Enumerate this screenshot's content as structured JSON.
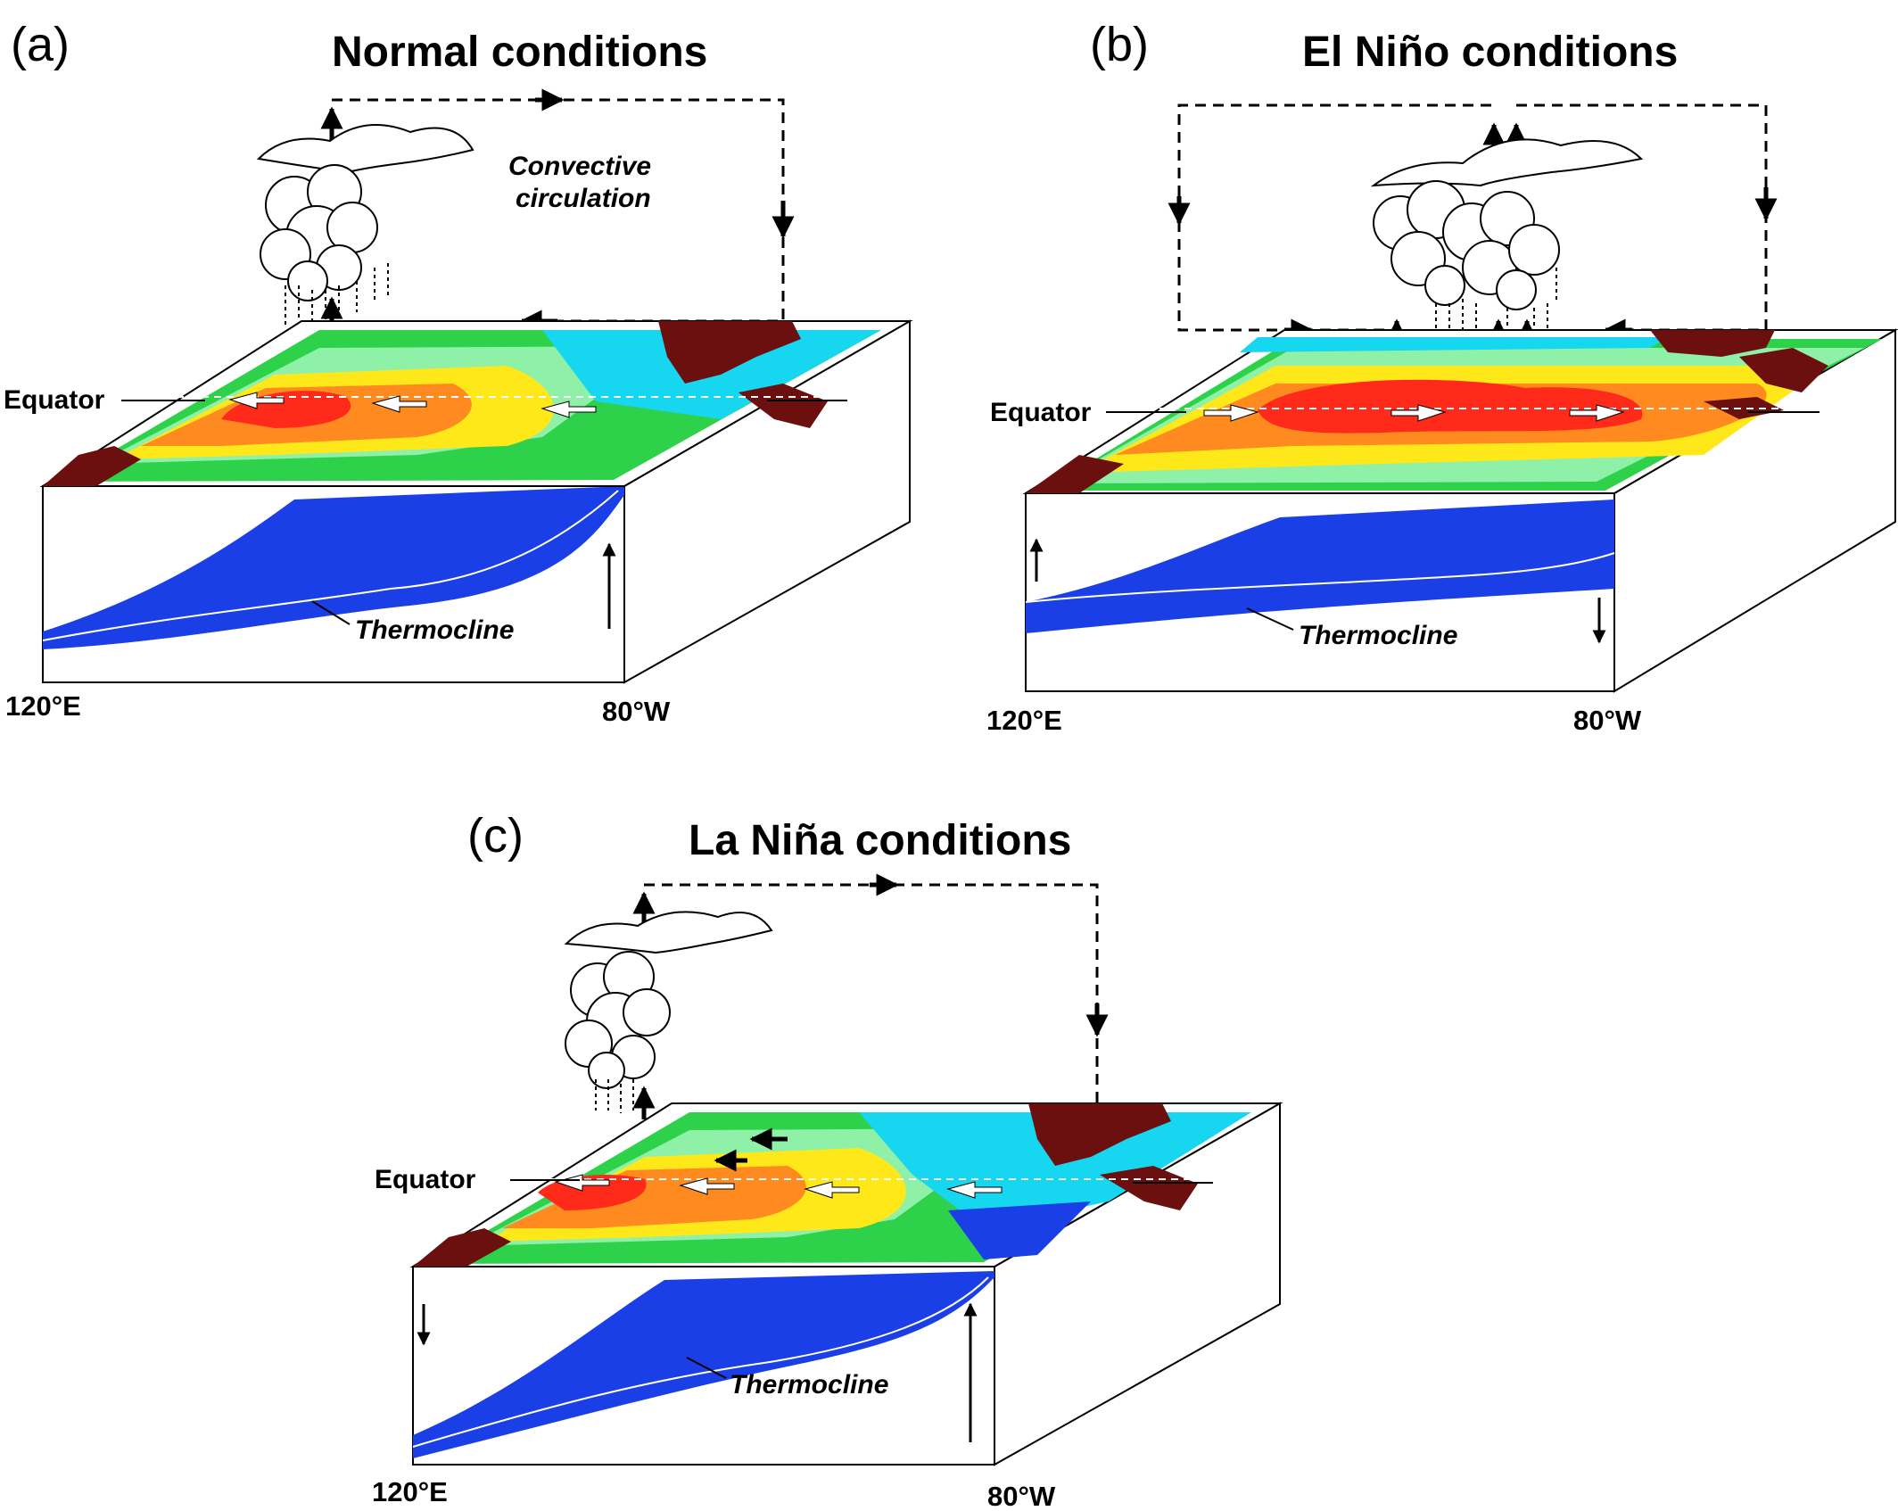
{
  "panels": [
    {
      "letter": "(a)",
      "title": "Normal conditions",
      "equator_label": "Equator",
      "circulation_label_line1": "Convective",
      "circulation_label_line2": "circulation",
      "thermocline_label": "Thermocline",
      "lon_west": "120°E",
      "lon_east": "80°W"
    },
    {
      "letter": "(b)",
      "title": "El Niño conditions",
      "equator_label": "Equator",
      "thermocline_label": "Thermocline",
      "lon_west": "120°E",
      "lon_east": "80°W"
    },
    {
      "letter": "(c)",
      "title": "La Niña conditions",
      "equator_label": "Equator",
      "thermocline_label": "Thermocline",
      "lon_west": "120°E",
      "lon_east": "80°W"
    }
  ],
  "colors": {
    "land": "#6b0f0f",
    "warm_pool": "#ff2a1a",
    "orange": "#ff8a1f",
    "yellow": "#ffe81a",
    "light_green": "#8ff0a8",
    "green": "#2ed14a",
    "cyan": "#16d6f0",
    "deep_water": "#1a3fe6"
  }
}
